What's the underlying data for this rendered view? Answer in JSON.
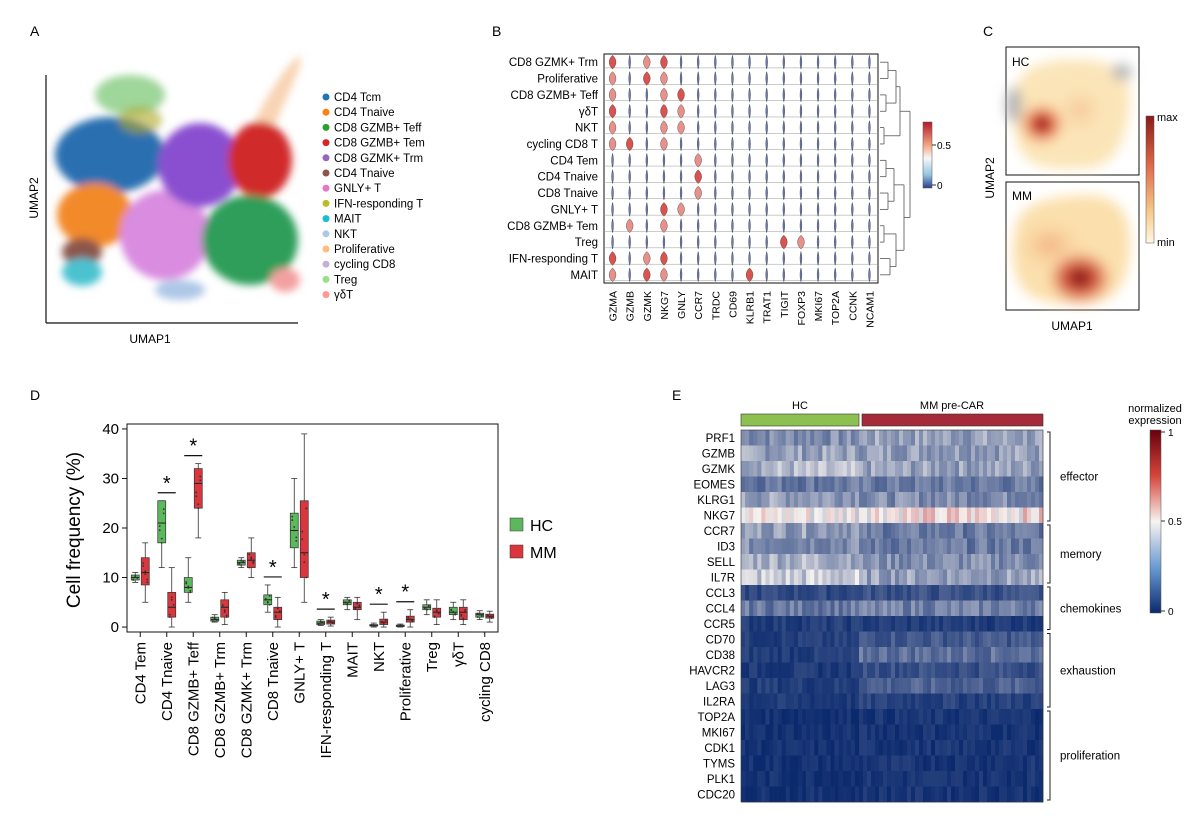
{
  "panels": {
    "A": {
      "letter": "A",
      "xlabel": "UMAP1",
      "ylabel": "UMAP2",
      "legend": [
        {
          "label": "CD4 Tcm",
          "color": "#1f77b4"
        },
        {
          "label": "CD4 Tnaive",
          "color": "#ff7f0e"
        },
        {
          "label": "CD8 GZMB+ Teff",
          "color": "#2ca02c"
        },
        {
          "label": "CD8 GZMB+ Tem",
          "color": "#d62728"
        },
        {
          "label": "CD8 GZMK+ Trm",
          "color": "#9467bd"
        },
        {
          "label": "CD4 Tnaive",
          "color": "#8c564b"
        },
        {
          "label": "GNLY+ T",
          "color": "#e377c2"
        },
        {
          "label": "IFN-responding T",
          "color": "#bcbd22"
        },
        {
          "label": "MAIT",
          "color": "#17becf"
        },
        {
          "label": "NKT",
          "color": "#aec7e8"
        },
        {
          "label": "Proliferative",
          "color": "#ffbb78"
        },
        {
          "label": "cycling CD8",
          "color": "#c5b0d5"
        },
        {
          "label": "Treg",
          "color": "#98df8a"
        },
        {
          "label": "γδT",
          "color": "#ff9896"
        }
      ]
    },
    "B": {
      "letter": "B",
      "rows": [
        "CD8 GZMK+ Trm",
        "Proliferative",
        "CD8 GZMB+ Teff",
        "γδT",
        "NKT",
        "cycling CD8 T",
        "CD4 Tem",
        "CD4 Tnaive",
        "CD8 Tnaive",
        "GNLY+ T",
        "CD8 GZMB+ Tem",
        "Treg",
        "IFN-responding T",
        "MAIT"
      ],
      "genes": [
        "GZMA",
        "GZMB",
        "GZMK",
        "NKG7",
        "GNLY",
        "CCR7",
        "TRDC",
        "CD69",
        "KLRB1",
        "TRAT1",
        "TIGIT",
        "FOXP3",
        "MKI67",
        "TOP2A",
        "CCNK",
        "NCAM1"
      ],
      "colorbar_ticks": [
        "0.5",
        "0"
      ]
    },
    "C": {
      "letter": "C",
      "xlabel": "UMAP1",
      "ylabel": "UMAP2",
      "top_label": "HC",
      "bottom_label": "MM",
      "cbar_max": "max",
      "cbar_min": "min"
    },
    "D": {
      "letter": "D",
      "ylabel": "Cell frequency (%)",
      "legend": [
        {
          "label": "HC",
          "color": "#5cb85c"
        },
        {
          "label": "MM",
          "color": "#d9363e"
        }
      ],
      "star": "*"
    },
    "E": {
      "letter": "E",
      "group_hc": "HC",
      "group_mm": "MM pre-CAR",
      "cbar_title_1": "normalized",
      "cbar_title_2": "expression",
      "cbar_ticks": [
        "1",
        "0.5",
        "0"
      ],
      "genes": [
        "PRF1",
        "GZMB",
        "GZMK",
        "EOMES",
        "KLRG1",
        "NKG7",
        "CCR7",
        "ID3",
        "SELL",
        "IL7R",
        "CCL3",
        "CCL4",
        "CCR5",
        "CD70",
        "CD38",
        "HAVCR2",
        "LAG3",
        "IL2RA",
        "TOP2A",
        "MKI67",
        "CDK1",
        "TYMS",
        "PLK1",
        "CDC20"
      ],
      "modules": [
        {
          "label": "effector",
          "from": 0,
          "to": 5
        },
        {
          "label": "memory",
          "from": 6,
          "to": 9
        },
        {
          "label": "chemokines",
          "from": 10,
          "to": 12
        },
        {
          "label": "exhaustion",
          "from": 13,
          "to": 17
        },
        {
          "label": "proliferation",
          "from": 18,
          "to": 23
        }
      ]
    }
  },
  "chart_data": [
    {
      "type": "scatter",
      "panel": "A",
      "title": "",
      "xlabel": "UMAP1",
      "ylabel": "UMAP2",
      "series": [
        "CD4 Tcm",
        "CD4 Tnaive",
        "CD8 GZMB+ Teff",
        "CD8 GZMB+ Tem",
        "CD8 GZMK+ Trm",
        "CD4 Tnaive",
        "GNLY+ T",
        "IFN-responding T",
        "MAIT",
        "NKT",
        "Proliferative",
        "cycling CD8",
        "Treg",
        "γδT"
      ]
    },
    {
      "type": "violin",
      "panel": "B",
      "xlabel": "",
      "ylabel": "",
      "categories": [
        "GZMA",
        "GZMB",
        "GZMK",
        "NKG7",
        "GNLY",
        "CCR7",
        "TRDC",
        "CD69",
        "KLRB1",
        "TRAT1",
        "TIGIT",
        "FOXP3",
        "MKI67",
        "TOP2A",
        "CCNK",
        "NCAM1"
      ],
      "rows": [
        "CD8 GZMK+ Trm",
        "Proliferative",
        "CD8 GZMB+ Teff",
        "γδT",
        "NKT",
        "cycling CD8 T",
        "CD4 Tem",
        "CD4 Tnaive",
        "CD8 Tnaive",
        "GNLY+ T",
        "CD8 GZMB+ Tem",
        "Treg",
        "IFN-responding T",
        "MAIT"
      ],
      "color_range": [
        0,
        0.7
      ]
    },
    {
      "type": "heatmap",
      "panel": "C",
      "xlabel": "UMAP1",
      "ylabel": "UMAP2",
      "series": [
        "HC",
        "MM"
      ],
      "color_range": [
        "min",
        "max"
      ]
    },
    {
      "type": "box",
      "panel": "D",
      "title": "",
      "xlabel": "",
      "ylabel": "Cell frequency (%)",
      "ylim": [
        -1,
        41
      ],
      "yticks": [
        0,
        10,
        20,
        30,
        40
      ],
      "categories": [
        "CD4 Tem",
        "CD4 Tnaive",
        "CD8 GZMB+ Teff",
        "CD8 GZMB+ Trm",
        "CD8 GZMK+ Trm",
        "CD8 Tnaive",
        "GNLY+ T",
        "IFN-responding T",
        "MAIT",
        "NKT",
        "Proliferative",
        "Treg",
        "γδT",
        "cycling CD8"
      ],
      "significant": [
        "CD4 Tnaive",
        "CD8 GZMB+ Teff",
        "CD8 Tnaive",
        "IFN-responding T",
        "NKT",
        "Proliferative"
      ],
      "series": [
        {
          "name": "HC",
          "color": "#5cb85c",
          "boxes": [
            [
              9,
              9.5,
              10,
              10.5,
              11
            ],
            [
              12,
              17,
              21,
              25.5,
              25.5
            ],
            [
              5,
              7,
              8,
              10,
              14
            ],
            [
              1,
              1.2,
              1.5,
              2,
              2.5
            ],
            [
              12,
              12.5,
              13,
              13.5,
              14
            ],
            [
              3,
              4.5,
              5.5,
              6.5,
              8.5
            ],
            [
              12,
              16,
              19.5,
              23,
              30
            ],
            [
              0.3,
              0.5,
              0.8,
              1.2,
              1.5
            ],
            [
              3.5,
              4.5,
              5,
              5.5,
              6
            ],
            [
              0,
              0.2,
              0.3,
              0.5,
              0.8
            ],
            [
              0,
              0.1,
              0.2,
              0.4,
              0.6
            ],
            [
              2.5,
              3.5,
              4,
              4.5,
              5.5
            ],
            [
              1.5,
              2.5,
              3,
              4,
              5
            ],
            [
              1.5,
              2,
              2.5,
              2.8,
              3.3
            ]
          ]
        },
        {
          "name": "MM",
          "color": "#d9363e",
          "boxes": [
            [
              5,
              8.5,
              11,
              14,
              17
            ],
            [
              0,
              2,
              4,
              7,
              12
            ],
            [
              18,
              24,
              29,
              32,
              33
            ],
            [
              0.5,
              2,
              4,
              5.5,
              7
            ],
            [
              10,
              12,
              13.5,
              15,
              18
            ],
            [
              0,
              1.5,
              3,
              4,
              6
            ],
            [
              5,
              10,
              15,
              25.5,
              39
            ],
            [
              0.2,
              0.6,
              1,
              1.4,
              2
            ],
            [
              1.5,
              3.5,
              4,
              5,
              6
            ],
            [
              0,
              0.5,
              1,
              1.6,
              3
            ],
            [
              0,
              1,
              1.5,
              2.2,
              3.5
            ],
            [
              0.5,
              2,
              3,
              3.8,
              5.5
            ],
            [
              0.5,
              1.5,
              3,
              4,
              5.5
            ],
            [
              1,
              1.8,
              2.2,
              2.6,
              3.2
            ]
          ]
        }
      ]
    },
    {
      "type": "heatmap",
      "panel": "E",
      "rows": [
        "PRF1",
        "GZMB",
        "GZMK",
        "EOMES",
        "KLRG1",
        "NKG7",
        "CCR7",
        "ID3",
        "SELL",
        "IL7R",
        "CCL3",
        "CCL4",
        "CCR5",
        "CD70",
        "CD38",
        "HAVCR2",
        "LAG3",
        "IL2RA",
        "TOP2A",
        "MKI67",
        "CDK1",
        "TYMS",
        "PLK1",
        "CDC20"
      ],
      "column_groups": [
        "HC",
        "MM pre-CAR"
      ],
      "color_range": [
        0,
        1
      ],
      "row_mean_hc": [
        0.25,
        0.3,
        0.35,
        0.2,
        0.3,
        0.5,
        0.3,
        0.25,
        0.35,
        0.4,
        0.08,
        0.2,
        0.05,
        0.05,
        0.05,
        0.04,
        0.05,
        0.04,
        0.02,
        0.02,
        0.02,
        0.02,
        0.02,
        0.02
      ],
      "row_mean_mm": [
        0.3,
        0.3,
        0.3,
        0.2,
        0.25,
        0.55,
        0.2,
        0.2,
        0.25,
        0.3,
        0.1,
        0.22,
        0.05,
        0.12,
        0.18,
        0.1,
        0.14,
        0.06,
        0.03,
        0.03,
        0.03,
        0.03,
        0.03,
        0.03
      ]
    }
  ]
}
